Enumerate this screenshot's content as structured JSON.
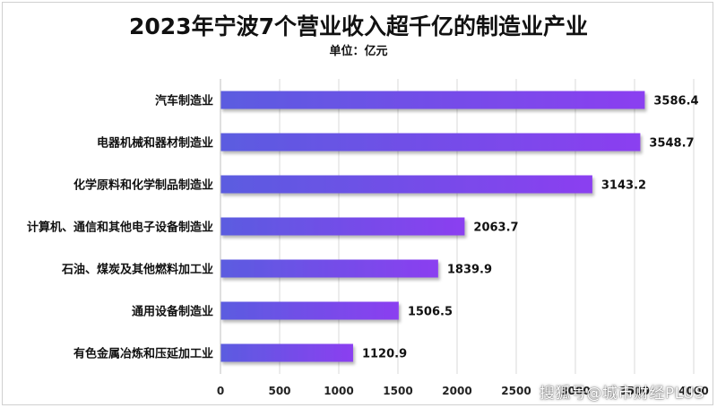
{
  "chart_data": {
    "type": "bar",
    "orientation": "horizontal",
    "title": "2023年宁波7个营业收入超千亿的制造业产业",
    "subtitle": "单位：亿元",
    "categories": [
      "汽车制造业",
      "电器机械和器材制造业",
      "化学原料和化学制品制造业",
      "计算机、通信和其他电子设备制造业",
      "石油、煤炭及其他燃料加工业",
      "通用设备制造业",
      "有色金属冶炼和压延加工业"
    ],
    "values": [
      3586.4,
      3548.7,
      3143.2,
      2063.7,
      1839.9,
      1506.5,
      1120.9
    ],
    "value_labels": [
      "3586.4",
      "3548.7",
      "3143.2",
      "2063.7",
      "1839.9",
      "1506.5",
      "1120.9"
    ],
    "xlim": [
      0,
      4000
    ],
    "x_ticks": [
      "0",
      "500",
      "1000",
      "1500",
      "2000",
      "2500",
      "3000",
      "3500",
      "4000"
    ],
    "xlabel": "",
    "ylabel": "",
    "grid": true,
    "bar_color_start": "#5b5ce0",
    "bar_color_end": "#8b3ff0"
  },
  "watermark": "搜狐号@城市财经PLUS"
}
